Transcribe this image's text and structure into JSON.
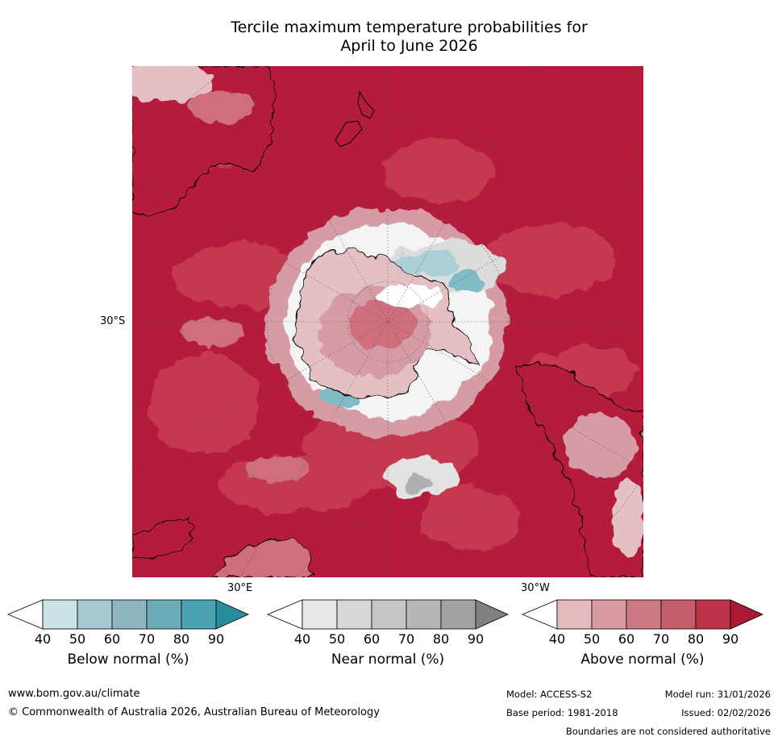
{
  "title": {
    "line1": "Tercile maximum temperature probabilities for",
    "line2": "April to June 2026"
  },
  "map": {
    "projection": "south polar stereographic",
    "lat_label": "30°S",
    "lon_labels": {
      "east": "30°E",
      "west": "30°W"
    },
    "dominant_category": "Above normal",
    "colors": {
      "ocean_90": "#b51c3b",
      "ocean_80": "#c5384f",
      "ant_60": "#cf6e7d",
      "ant_50": "#d69ca6",
      "ant_40": "#e4c0c5",
      "near_white": "#f4f4f4",
      "near_grey": "#cbcbcb",
      "blue": "#7fbcc6",
      "coast": "#000000"
    }
  },
  "colorbars": [
    {
      "title": "Below normal (%)",
      "ticks": [
        "40",
        "50",
        "60",
        "70",
        "80",
        "90"
      ],
      "colors": [
        "#ffffff",
        "#cae1e6",
        "#a8c8cf",
        "#8db6c2",
        "#6aabb6",
        "#4aa2b2",
        "#2a8d9e"
      ]
    },
    {
      "title": "Near normal (%)",
      "ticks": [
        "40",
        "50",
        "60",
        "70",
        "80",
        "90"
      ],
      "colors": [
        "#ffffff",
        "#e7e7e7",
        "#d7d7d7",
        "#c6c6c6",
        "#b5b5b5",
        "#a2a2a2",
        "#808080"
      ]
    },
    {
      "title": "Above normal (%)",
      "ticks": [
        "40",
        "50",
        "60",
        "70",
        "80",
        "90"
      ],
      "colors": [
        "#ffffff",
        "#e5b9be",
        "#d99aa2",
        "#ce7a84",
        "#c45e6b",
        "#bb3249",
        "#ab1a35"
      ]
    }
  ],
  "footer": {
    "website": "www.bom.gov.au/climate",
    "copyright": "© Commonwealth of Australia 2026, Australian Bureau of Meteorology",
    "model": "Model: ACCESS-S2",
    "base_period": "Base period: 1981-2018",
    "model_run": "Model run: 31/01/2026",
    "issued": "Issued: 02/02/2026",
    "disclaimer": "Boundaries are not considered authoritative"
  }
}
